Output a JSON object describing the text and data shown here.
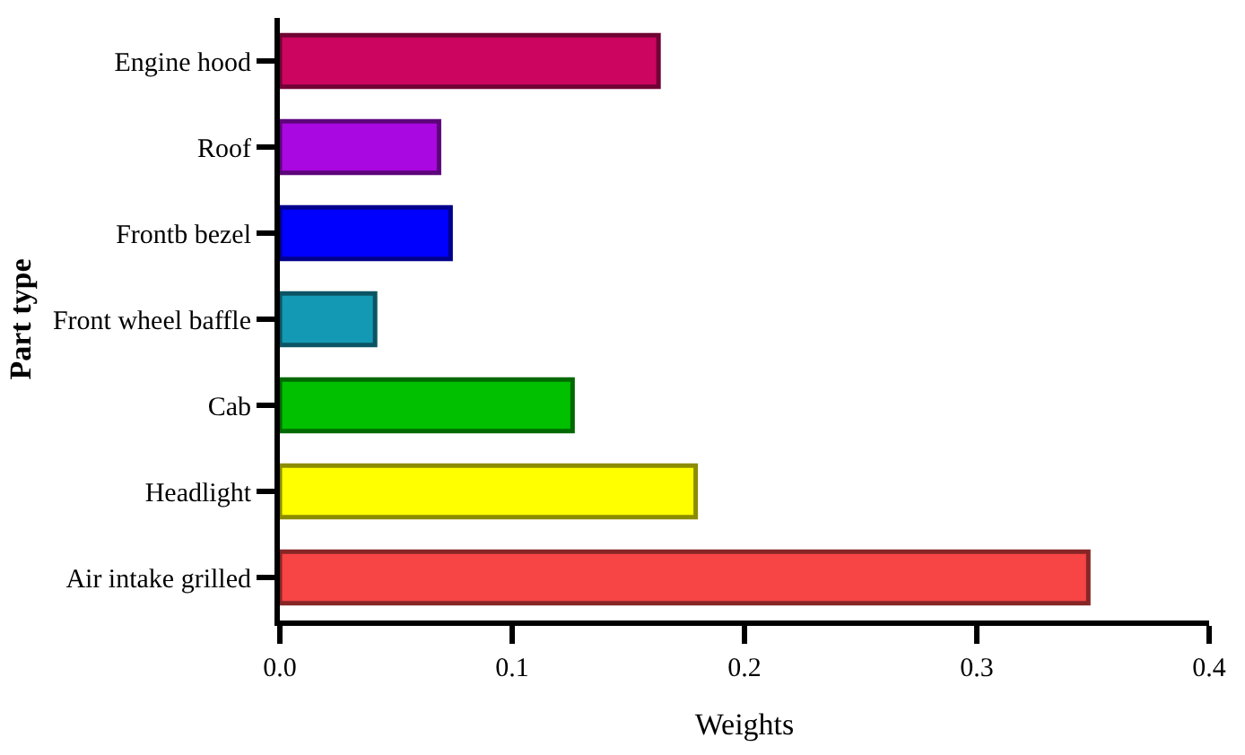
{
  "chart_data": {
    "type": "bar",
    "orientation": "horizontal",
    "categories": [
      "Engine hood",
      "Roof",
      "Frontb bezel",
      "Front wheel baffle",
      "Cab",
      "Headlight",
      "Air intake grilled"
    ],
    "values": [
      0.163,
      0.0685,
      0.0735,
      0.041,
      0.126,
      0.179,
      0.348
    ],
    "colors": [
      "#cc0660",
      "#aa08e0",
      "#0000ff",
      "#1499b4",
      "#00c000",
      "#ffff00",
      "#f74444"
    ],
    "xlabel": "Weights",
    "ylabel": "Part type",
    "xlim": [
      0,
      0.4
    ],
    "xticks": [
      {
        "value": 0,
        "label": "0.0"
      },
      0.1,
      0.2,
      0.3,
      0.4
    ]
  }
}
